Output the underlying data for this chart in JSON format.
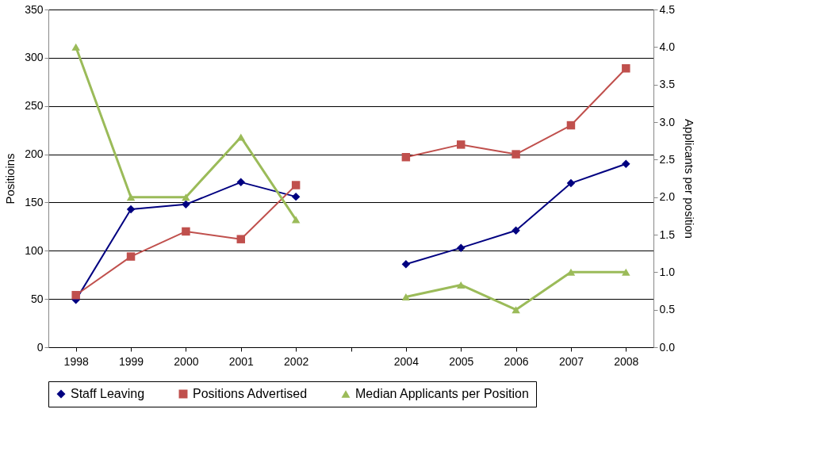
{
  "chart_data": {
    "type": "line",
    "categories": [
      "1998",
      "1999",
      "2000",
      "2001",
      "2002",
      null,
      "2004",
      "2005",
      "2006",
      "2007",
      "2008"
    ],
    "series": [
      {
        "name": "Staff Leaving",
        "color": "#000080",
        "marker": "diamond",
        "values": [
          49,
          143,
          148,
          171,
          156,
          null,
          86,
          103,
          121,
          170,
          190
        ]
      },
      {
        "name": "Positions Advertised",
        "color": "#c0504d",
        "marker": "square",
        "values": [
          54,
          94,
          120,
          112,
          168,
          null,
          197,
          210,
          200,
          230,
          289
        ]
      },
      {
        "name": "Median Applicants per Position",
        "color": "#9bbb59",
        "marker": "triangle",
        "axis": "y2",
        "values": [
          4.0,
          2.0,
          2.0,
          2.8,
          1.7,
          null,
          0.67,
          0.83,
          0.5,
          1.0,
          1.0
        ]
      }
    ],
    "ylabel": "Positioins",
    "y2label": "Applicants per position",
    "ylim": [
      0,
      350
    ],
    "yticks": [
      0,
      50,
      100,
      150,
      200,
      250,
      300,
      350
    ],
    "y2lim": [
      0,
      4.5
    ],
    "y2ticks": [
      {
        "value": 0,
        "label": "0.0"
      },
      {
        "value": 0.5,
        "label": "0.5"
      },
      {
        "value": 1,
        "label": "1.0"
      },
      {
        "value": 1.5,
        "label": "1.5"
      },
      {
        "value": 2,
        "label": "2.0"
      },
      {
        "value": 2.5,
        "label": "2.5"
      },
      {
        "value": 3,
        "label": "3.0"
      },
      {
        "value": 3.5,
        "label": "3.5"
      },
      {
        "value": 4,
        "label": "4.0"
      },
      {
        "value": 4.5,
        "label": "4.5"
      }
    ],
    "grid": "y",
    "legend": "bottom"
  }
}
